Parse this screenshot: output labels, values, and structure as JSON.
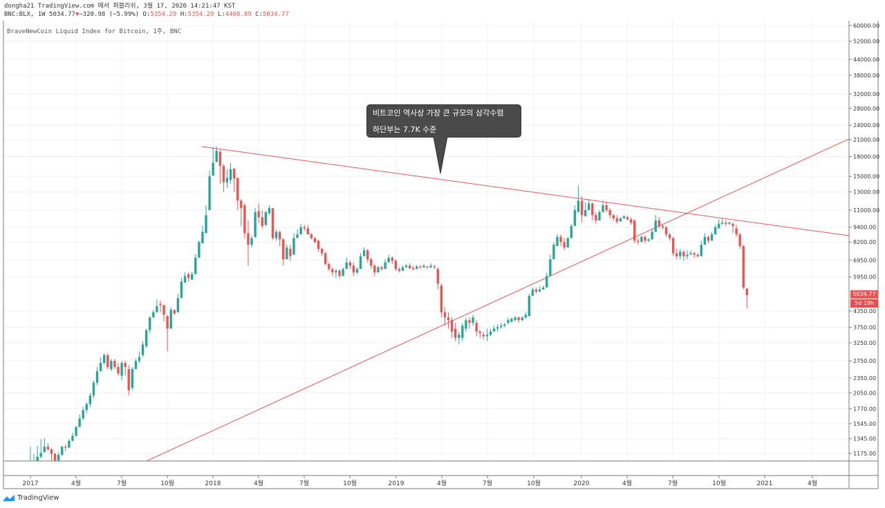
{
  "header": {
    "line1": "dongha21 TradingView.com 에서 퍼블리쉬, 3월 17, 2020 14:21:47 KST",
    "symbol": "BNC:BLX, 1W 5034.77",
    "change_arrow": "▼",
    "change": "−320.98 (−5.99%)",
    "o_label": "O:",
    "o": "5354.29",
    "h_label": "H:",
    "h": "5354.29",
    "l_label": "L:",
    "l": "4460.89",
    "c_label": "C:",
    "c": "5034.77"
  },
  "index_name": "BraveNewCoin Liquid Index for Bitcoin, 1주, BNC",
  "callout": {
    "line1": "비트코인 역사상 가장 큰 규모의 삼각수렴",
    "line2": "하단부는 7.7K 수준"
  },
  "price_tag": {
    "price": "5034.77",
    "countdown": "5d 19h"
  },
  "footer": {
    "brand": "TradingView"
  },
  "colors": {
    "up": "#26a69a",
    "down": "#ef5350",
    "trendline": "#ef5350",
    "grid": "#eef0f3"
  },
  "chart_data": {
    "type": "candlestick",
    "title": "",
    "y_scale": "log",
    "y_ticks": [
      60000,
      52000,
      44000,
      38000,
      32000,
      28000,
      24000,
      21000,
      18000,
      15000,
      13000,
      11000,
      9400,
      8200,
      6950,
      5950,
      4350,
      3750,
      3250,
      2750,
      2350,
      2050,
      1770,
      1545,
      1345,
      1175
    ],
    "y_tick_labels": [
      "60000.00",
      "52000.00",
      "44000.00",
      "38000.00",
      "32000.00",
      "28000.00",
      "24000.00",
      "21000.00",
      "18000.00",
      "15000.00",
      "13000.00",
      "11000.00",
      "9400.00",
      "8200.00",
      "6950.00",
      "5950.00",
      "4350.00",
      "3750.00",
      "3250.00",
      "2750.00",
      "2350.00",
      "2050.00",
      "1770.00",
      "1545.00",
      "1345.00",
      "1175.00"
    ],
    "x_ticks": [
      "2017",
      "4월",
      "7월",
      "10월",
      "2018",
      "4월",
      "7월",
      "10월",
      "2019",
      "4월",
      "7월",
      "10월",
      "2020",
      "4월",
      "7월",
      "10월",
      "2021",
      "4월"
    ],
    "candles": [
      [
        1000,
        1000,
        1250,
        1000
      ],
      [
        1060,
        1010,
        1170,
        990
      ],
      [
        1140,
        1060,
        1260,
        1050
      ],
      [
        1180,
        1140,
        1340,
        1120
      ],
      [
        1250,
        1190,
        1350,
        1180
      ],
      [
        1220,
        1250,
        1290,
        1200
      ],
      [
        1170,
        1220,
        1230,
        1100
      ],
      [
        1100,
        1170,
        1180,
        1050
      ],
      [
        1160,
        1100,
        1190,
        1090
      ],
      [
        1250,
        1160,
        1260,
        1150
      ],
      [
        1240,
        1250,
        1270,
        1200
      ],
      [
        1320,
        1240,
        1340,
        1230
      ],
      [
        1380,
        1320,
        1420,
        1310
      ],
      [
        1500,
        1380,
        1510,
        1370
      ],
      [
        1620,
        1500,
        1680,
        1490
      ],
      [
        1750,
        1620,
        1800,
        1600
      ],
      [
        1850,
        1750,
        1880,
        1700
      ],
      [
        2000,
        1850,
        2050,
        1800
      ],
      [
        2250,
        2000,
        2300,
        1950
      ],
      [
        2500,
        2250,
        2600,
        2200
      ],
      [
        2700,
        2500,
        2850,
        2600
      ],
      [
        2900,
        2700,
        2950,
        2650
      ],
      [
        2600,
        2900,
        2950,
        2550
      ],
      [
        2750,
        2550,
        2800,
        2500
      ],
      [
        2600,
        2750,
        2800,
        2550
      ],
      [
        2450,
        2600,
        2700,
        2400
      ],
      [
        2700,
        2400,
        2750,
        2300
      ],
      [
        2600,
        2700,
        2750,
        2400
      ],
      [
        2100,
        2550,
        2650,
        2000
      ],
      [
        2550,
        2150,
        2600,
        2100
      ],
      [
        2750,
        2550,
        2800,
        2700
      ],
      [
        2850,
        2750,
        3000,
        2700
      ],
      [
        3200,
        2900,
        3300,
        2850
      ],
      [
        3650,
        3150,
        3700,
        3100
      ],
      [
        4100,
        3650,
        4150,
        3550
      ],
      [
        4300,
        4100,
        4400,
        4200
      ],
      [
        4550,
        4300,
        4850,
        4400
      ],
      [
        4600,
        4650,
        4800,
        4300
      ],
      [
        4200,
        4600,
        4600,
        3950
      ],
      [
        3700,
        4150,
        4200,
        3000
      ],
      [
        4400,
        3700,
        4500,
        3700
      ],
      [
        4250,
        4400,
        4400,
        4200
      ],
      [
        4900,
        4300,
        5100,
        4800
      ],
      [
        5700,
        4900,
        5900,
        5550
      ],
      [
        6000,
        5650,
        6200,
        5750
      ],
      [
        5900,
        6100,
        6200,
        5700
      ],
      [
        6100,
        5800,
        6250,
        6000
      ],
      [
        7100,
        6100,
        7350,
        6800
      ],
      [
        8200,
        7100,
        8300,
        7800
      ],
      [
        9000,
        8100,
        9500,
        8900
      ],
      [
        10500,
        8900,
        11500,
        10200
      ],
      [
        15000,
        11000,
        15800,
        14500
      ],
      [
        17000,
        15100,
        19600,
        16000
      ],
      [
        19000,
        17100,
        19700,
        17500
      ],
      [
        16500,
        18800,
        19200,
        14000
      ],
      [
        14200,
        16500,
        16800,
        13000
      ],
      [
        14800,
        14200,
        16000,
        13500
      ],
      [
        16000,
        14500,
        17000,
        14000
      ],
      [
        14700,
        16100,
        16000,
        13000
      ],
      [
        12000,
        14800,
        14800,
        11000
      ],
      [
        11200,
        12000,
        12200,
        9500
      ],
      [
        8900,
        11500,
        11700,
        8500
      ],
      [
        8000,
        8900,
        10000,
        6600
      ],
      [
        8500,
        8000,
        8700,
        7800
      ],
      [
        10800,
        8600,
        11200,
        8500
      ],
      [
        10300,
        10900,
        11700,
        9800
      ],
      [
        9500,
        10300,
        11000,
        9300
      ],
      [
        10800,
        9600,
        10900,
        9500
      ],
      [
        11200,
        10700,
        11500,
        10500
      ],
      [
        8500,
        11200,
        11200,
        8400
      ],
      [
        9000,
        8500,
        9200,
        8300
      ],
      [
        8400,
        9000,
        9100,
        7900
      ],
      [
        7000,
        8400,
        8500,
        6600
      ],
      [
        7800,
        7000,
        8000,
        7100
      ],
      [
        7200,
        7700,
        8000,
        6900
      ],
      [
        8500,
        7300,
        8900,
        8200
      ],
      [
        8800,
        8500,
        9200,
        8700
      ],
      [
        9400,
        8800,
        9700,
        9300
      ],
      [
        9300,
        9400,
        9600,
        9100
      ],
      [
        8800,
        9300,
        9600,
        8800
      ],
      [
        8500,
        8800,
        8900,
        8400
      ],
      [
        8200,
        8500,
        8600,
        8100
      ],
      [
        7700,
        8300,
        8400,
        7500
      ],
      [
        7400,
        7700,
        7800,
        7200
      ],
      [
        6700,
        7400,
        7500,
        6600
      ],
      [
        6400,
        6700,
        6800,
        6300
      ],
      [
        6200,
        6400,
        6500,
        6000
      ],
      [
        6300,
        6200,
        6400,
        5900
      ],
      [
        6000,
        6300,
        6400,
        5900
      ],
      [
        6400,
        6000,
        6500,
        6200
      ],
      [
        6800,
        6400,
        7100,
        6600
      ],
      [
        6600,
        6800,
        6900,
        6400
      ],
      [
        6200,
        6600,
        6800,
        6000
      ],
      [
        6400,
        6200,
        6500,
        6100
      ],
      [
        7200,
        6400,
        7400,
        7000
      ],
      [
        7600,
        7200,
        7800,
        7400
      ],
      [
        7000,
        7600,
        7700,
        6800
      ],
      [
        6600,
        7000,
        7100,
        6400
      ],
      [
        6200,
        6600,
        6700,
        6000
      ],
      [
        6500,
        6200,
        6600,
        6300
      ],
      [
        6400,
        6500,
        6600,
        6300
      ],
      [
        6800,
        6400,
        7000,
        6700
      ],
      [
        7100,
        6800,
        7300,
        6800
      ],
      [
        6900,
        7100,
        7200,
        6700
      ],
      [
        6400,
        6900,
        7000,
        6300
      ],
      [
        6300,
        6400,
        6500,
        6200
      ],
      [
        6500,
        6300,
        6600,
        6400
      ],
      [
        6600,
        6500,
        6700,
        6500
      ],
      [
        6450,
        6600,
        6750,
        6400
      ],
      [
        6400,
        6450,
        6600,
        6300
      ],
      [
        6550,
        6400,
        6650,
        6400
      ],
      [
        6500,
        6550,
        6650,
        6400
      ],
      [
        6600,
        6500,
        6700,
        6500
      ],
      [
        6500,
        6550,
        6600,
        6400
      ],
      [
        6600,
        6500,
        6750,
        6450
      ],
      [
        6500,
        6550,
        6650,
        6400
      ],
      [
        5600,
        6400,
        6500,
        5300
      ],
      [
        4300,
        5500,
        5600,
        4100
      ],
      [
        4100,
        4300,
        4500,
        3800
      ],
      [
        4000,
        4100,
        4300,
        3700
      ],
      [
        3600,
        4000,
        4100,
        3400
      ],
      [
        3400,
        3700,
        3900,
        3300
      ],
      [
        3500,
        3400,
        3600,
        3200
      ],
      [
        3800,
        3400,
        3900,
        3300
      ],
      [
        4000,
        3700,
        4100,
        3600
      ],
      [
        3900,
        4000,
        4100,
        3700
      ],
      [
        4100,
        3900,
        4200,
        3800
      ],
      [
        3600,
        3900,
        4000,
        3450
      ],
      [
        3550,
        3600,
        3650,
        3400
      ],
      [
        3450,
        3500,
        3600,
        3350
      ],
      [
        3500,
        3450,
        3700,
        3300
      ],
      [
        3600,
        3500,
        3700,
        3450
      ],
      [
        3700,
        3600,
        3800,
        3600
      ],
      [
        3750,
        3700,
        3850,
        3600
      ],
      [
        3800,
        3750,
        3900,
        3700
      ],
      [
        3850,
        3800,
        3900,
        3750
      ],
      [
        4000,
        3900,
        4100,
        3850
      ],
      [
        4050,
        3950,
        4100,
        3900
      ],
      [
        4100,
        4000,
        4150,
        3950
      ],
      [
        4000,
        4100,
        4150,
        3900
      ],
      [
        4100,
        4000,
        4150,
        3950
      ],
      [
        4200,
        4100,
        4300,
        4050
      ],
      [
        5000,
        4150,
        5100,
        4200
      ],
      [
        5300,
        5000,
        5400,
        5100
      ],
      [
        5200,
        5300,
        5400,
        5100
      ],
      [
        5300,
        5200,
        5450,
        5200
      ],
      [
        5400,
        5300,
        5500,
        5300
      ],
      [
        6000,
        5400,
        6200,
        5600
      ],
      [
        7000,
        6000,
        7300,
        6800
      ],
      [
        8000,
        7000,
        8200,
        7500
      ],
      [
        8600,
        7900,
        8800,
        8100
      ],
      [
        8200,
        8600,
        8800,
        7900
      ],
      [
        7800,
        8200,
        8500,
        7600
      ],
      [
        8500,
        7800,
        8600,
        8300
      ],
      [
        9500,
        8500,
        9700,
        9400
      ],
      [
        11000,
        9500,
        11500,
        10500
      ],
      [
        12000,
        10800,
        13800,
        11500
      ],
      [
        10500,
        12000,
        12500,
        9800
      ],
      [
        11000,
        10400,
        11800,
        10500
      ],
      [
        11700,
        11000,
        12200,
        11300
      ],
      [
        10500,
        11700,
        11800,
        10000
      ],
      [
        10000,
        10500,
        10800,
        9700
      ],
      [
        10800,
        10000,
        11000,
        10600
      ],
      [
        11500,
        10800,
        12000,
        11200
      ],
      [
        11000,
        11500,
        11900,
        10800
      ],
      [
        10500,
        11000,
        11200,
        10200
      ],
      [
        10200,
        10500,
        10600,
        10000
      ],
      [
        9900,
        10200,
        10500,
        9700
      ],
      [
        10200,
        9900,
        10300,
        10000
      ],
      [
        10400,
        10200,
        10500,
        10200
      ],
      [
        10100,
        10300,
        10450,
        10000
      ],
      [
        9800,
        10100,
        10300,
        9600
      ],
      [
        8300,
        10000,
        10100,
        8100
      ],
      [
        8200,
        8300,
        8500,
        8000
      ],
      [
        8600,
        8200,
        8700,
        8400
      ],
      [
        8300,
        8600,
        8700,
        8100
      ],
      [
        8400,
        8300,
        8500,
        8200
      ],
      [
        9000,
        8400,
        9300,
        8800
      ],
      [
        10000,
        9000,
        10500,
        9800
      ],
      [
        9500,
        10000,
        10300,
        9300
      ],
      [
        9400,
        9500,
        9600,
        9200
      ],
      [
        8800,
        9400,
        9500,
        8600
      ],
      [
        8500,
        8800,
        8900,
        8300
      ],
      [
        7400,
        8500,
        8600,
        7200
      ],
      [
        7200,
        7400,
        7700,
        7000
      ],
      [
        7500,
        7200,
        7700,
        7000
      ],
      [
        7200,
        7500,
        7600,
        6900
      ],
      [
        7300,
        7200,
        7600,
        7000
      ],
      [
        7400,
        7300,
        7600,
        7300
      ],
      [
        7300,
        7400,
        7500,
        7100
      ],
      [
        7200,
        7300,
        7400,
        7100
      ],
      [
        8000,
        7200,
        8300,
        7800
      ],
      [
        8600,
        8000,
        8900,
        8300
      ],
      [
        8300,
        8600,
        8700,
        8100
      ],
      [
        8800,
        8300,
        9000,
        8600
      ],
      [
        9400,
        8800,
        9600,
        9200
      ],
      [
        9700,
        9300,
        10100,
        9500
      ],
      [
        9800,
        9700,
        10200,
        9600
      ],
      [
        9700,
        9800,
        10000,
        9500
      ],
      [
        9800,
        9700,
        9900,
        9600
      ],
      [
        9500,
        9700,
        9800,
        8900
      ],
      [
        8800,
        9300,
        9600,
        8600
      ],
      [
        7900,
        8800,
        8900,
        7700
      ],
      [
        5400,
        7900,
        8000,
        5300
      ],
      [
        5034.77,
        5354.29,
        5354.29,
        4460.89
      ]
    ]
  }
}
